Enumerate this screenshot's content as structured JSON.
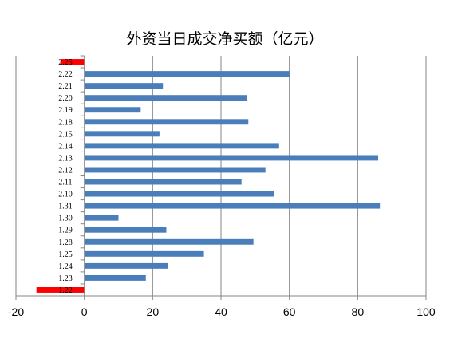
{
  "chart_data": {
    "type": "bar",
    "orientation": "horizontal",
    "title": "外资当日成交净买额（亿元）",
    "xlabel": "",
    "ylabel": "",
    "xlim": [
      -20,
      100
    ],
    "x_ticks": [
      "-20",
      "0",
      "20",
      "40",
      "60",
      "80",
      "100"
    ],
    "grid": "vertical",
    "legend": "none",
    "colors": {
      "positive": "#4a7ebb",
      "negative": "#ff0000",
      "grid": "#868686",
      "axis": "#868686"
    },
    "categories": [
      "1.22",
      "1.23",
      "1.24",
      "1.25",
      "1.28",
      "1.29",
      "1.30",
      "1.31",
      "2.10",
      "2.11",
      "2.12",
      "2.13",
      "2.14",
      "2.15",
      "2.18",
      "2.19",
      "2.20",
      "2.21",
      "2.22",
      "2.25"
    ],
    "values": [
      -14,
      18,
      24.5,
      35,
      49.5,
      24,
      10,
      86.5,
      55.5,
      46,
      53,
      86,
      57,
      22,
      48,
      16.5,
      47.5,
      23,
      60,
      -7
    ]
  }
}
